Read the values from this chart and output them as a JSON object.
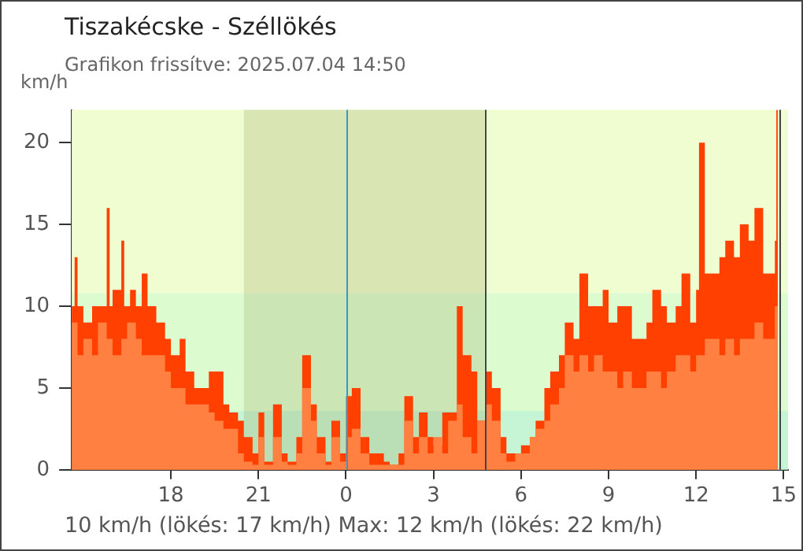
{
  "chart_data": {
    "type": "area",
    "title": "Tiszakécske - Széllökés",
    "subtitle": "Grafikon frissítve: 2025.07.04 14:50",
    "ylabel": "km/h",
    "annotations": [
      "10 km/h  (lökés: 17 km/h)  Max: 12 km/h (lökés: 22 km/h)"
    ],
    "xlim": [
      "2025-07-03T14:36",
      "2025-07-04T15:09"
    ],
    "ylim": [
      0,
      22
    ],
    "xticks": [
      {
        "value": "2025-07-03T18:00",
        "label": "18"
      },
      {
        "value": "2025-07-03T21:00",
        "label": "21"
      },
      {
        "value": "2025-07-04T00:00",
        "label": "0"
      },
      {
        "value": "2025-07-04T03:00",
        "label": "3"
      },
      {
        "value": "2025-07-04T06:00",
        "label": "6"
      },
      {
        "value": "2025-07-04T09:00",
        "label": "9"
      },
      {
        "value": "2025-07-04T12:00",
        "label": "12"
      },
      {
        "value": "2025-07-04T15:00",
        "label": "15"
      }
    ],
    "yticks": [
      0,
      5,
      10,
      15,
      20
    ],
    "grid": false,
    "legend": false,
    "bands": [
      {
        "axis": "y",
        "from": 0,
        "to": 3.6,
        "color": "#c5f5d5"
      },
      {
        "axis": "y",
        "from": 3.6,
        "to": 10.8,
        "color": "#dcfcd0"
      },
      {
        "axis": "y",
        "from": 10.8,
        "to": 22,
        "color": "#effdd0"
      },
      {
        "axis": "x",
        "from": "2025-07-03T20:30",
        "to": "2025-07-04T04:45",
        "color": "#9aa060"
      }
    ],
    "ref_lines": [
      {
        "axis": "x",
        "value": "2025-07-04T00:00",
        "color": "#3399cc"
      },
      {
        "axis": "x",
        "value": "2025-07-04T04:45",
        "color": "#444444"
      },
      {
        "axis": "x",
        "value": "2025-07-04T14:51",
        "color": "#444444"
      }
    ],
    "series": [
      {
        "color": "#ff4000",
        "x": [
          "2025-07-03T14:36",
          "2025-07-03T14:42",
          "2025-07-03T14:48",
          "2025-07-03T15:00",
          "2025-07-03T15:18",
          "2025-07-03T15:30",
          "2025-07-03T15:48",
          "2025-07-03T15:54",
          "2025-07-03T16:00",
          "2025-07-03T16:18",
          "2025-07-03T16:24",
          "2025-07-03T16:36",
          "2025-07-03T16:48",
          "2025-07-03T17:00",
          "2025-07-03T17:12",
          "2025-07-03T17:30",
          "2025-07-03T17:48",
          "2025-07-03T18:00",
          "2025-07-03T18:18",
          "2025-07-03T18:30",
          "2025-07-03T18:48",
          "2025-07-03T19:00",
          "2025-07-03T19:18",
          "2025-07-03T19:30",
          "2025-07-03T19:48",
          "2025-07-03T20:00",
          "2025-07-03T20:18",
          "2025-07-03T20:30",
          "2025-07-03T20:48",
          "2025-07-03T21:00",
          "2025-07-03T21:12",
          "2025-07-03T21:30",
          "2025-07-03T21:48",
          "2025-07-03T22:00",
          "2025-07-03T22:18",
          "2025-07-03T22:30",
          "2025-07-03T22:48",
          "2025-07-03T23:00",
          "2025-07-03T23:18",
          "2025-07-03T23:30",
          "2025-07-03T23:48",
          "2025-07-04T00:00",
          "2025-07-04T00:12",
          "2025-07-04T00:30",
          "2025-07-04T00:48",
          "2025-07-04T01:00",
          "2025-07-04T01:18",
          "2025-07-04T01:30",
          "2025-07-04T01:48",
          "2025-07-04T02:00",
          "2025-07-04T02:18",
          "2025-07-04T02:30",
          "2025-07-04T02:48",
          "2025-07-04T03:00",
          "2025-07-04T03:18",
          "2025-07-04T03:30",
          "2025-07-04T03:48",
          "2025-07-04T04:00",
          "2025-07-04T04:18",
          "2025-07-04T04:30",
          "2025-07-04T04:48",
          "2025-07-04T05:00",
          "2025-07-04T05:18",
          "2025-07-04T05:30",
          "2025-07-04T05:48",
          "2025-07-04T06:00",
          "2025-07-04T06:18",
          "2025-07-04T06:30",
          "2025-07-04T06:48",
          "2025-07-04T07:00",
          "2025-07-04T07:18",
          "2025-07-04T07:30",
          "2025-07-04T07:48",
          "2025-07-04T08:00",
          "2025-07-04T08:18",
          "2025-07-04T08:30",
          "2025-07-04T08:48",
          "2025-07-04T09:00",
          "2025-07-04T09:18",
          "2025-07-04T09:30",
          "2025-07-04T09:48",
          "2025-07-04T10:00",
          "2025-07-04T10:18",
          "2025-07-04T10:30",
          "2025-07-04T10:48",
          "2025-07-04T11:00",
          "2025-07-04T11:18",
          "2025-07-04T11:30",
          "2025-07-04T11:48",
          "2025-07-04T12:00",
          "2025-07-04T12:06",
          "2025-07-04T12:18",
          "2025-07-04T12:30",
          "2025-07-04T12:48",
          "2025-07-04T13:00",
          "2025-07-04T13:18",
          "2025-07-04T13:30",
          "2025-07-04T13:48",
          "2025-07-04T14:00",
          "2025-07-04T14:18",
          "2025-07-04T14:30",
          "2025-07-04T14:42",
          "2025-07-04T14:45",
          "2025-07-04T14:48"
        ],
        "values": [
          10,
          13,
          10,
          9,
          10,
          10,
          16,
          10,
          11,
          14,
          10,
          11,
          10,
          12,
          10,
          9,
          8,
          7,
          8,
          6,
          5,
          5,
          6,
          6,
          4,
          3.5,
          3,
          2,
          1,
          3.5,
          0.5,
          4,
          1,
          0.5,
          2,
          7,
          4,
          2,
          0.5,
          3,
          1,
          4.5,
          5,
          2,
          1,
          1,
          0.5,
          0.3,
          1,
          4.5,
          2,
          3.5,
          2,
          1.5,
          3.5,
          3.5,
          10,
          7,
          6,
          3,
          6,
          5,
          2,
          1,
          1,
          1.5,
          2,
          3,
          5,
          6,
          7,
          9,
          8,
          12,
          10,
          10,
          11,
          9,
          10,
          10,
          8,
          8,
          9,
          11,
          10,
          9,
          10,
          12,
          9,
          11,
          20,
          12,
          12,
          13,
          14,
          13,
          15,
          14,
          16,
          12,
          12,
          14,
          22,
          12
        ]
      },
      {
        "color": "#ff8040",
        "x": [
          "2025-07-03T14:36",
          "2025-07-03T14:48",
          "2025-07-03T15:00",
          "2025-07-03T15:18",
          "2025-07-03T15:30",
          "2025-07-03T15:48",
          "2025-07-03T16:00",
          "2025-07-03T16:18",
          "2025-07-03T16:30",
          "2025-07-03T16:48",
          "2025-07-03T17:00",
          "2025-07-03T17:12",
          "2025-07-03T17:30",
          "2025-07-03T17:48",
          "2025-07-03T18:00",
          "2025-07-03T18:18",
          "2025-07-03T18:30",
          "2025-07-03T18:48",
          "2025-07-03T19:00",
          "2025-07-03T19:18",
          "2025-07-03T19:30",
          "2025-07-03T19:48",
          "2025-07-03T20:00",
          "2025-07-03T20:18",
          "2025-07-03T20:30",
          "2025-07-03T20:48",
          "2025-07-03T21:00",
          "2025-07-03T21:12",
          "2025-07-03T21:30",
          "2025-07-03T21:48",
          "2025-07-03T22:00",
          "2025-07-03T22:18",
          "2025-07-03T22:30",
          "2025-07-03T22:48",
          "2025-07-03T23:00",
          "2025-07-03T23:18",
          "2025-07-03T23:30",
          "2025-07-03T23:48",
          "2025-07-04T00:00",
          "2025-07-04T00:12",
          "2025-07-04T00:30",
          "2025-07-04T00:48",
          "2025-07-04T01:00",
          "2025-07-04T01:18",
          "2025-07-04T01:30",
          "2025-07-04T01:48",
          "2025-07-04T02:00",
          "2025-07-04T02:18",
          "2025-07-04T02:30",
          "2025-07-04T02:48",
          "2025-07-04T03:00",
          "2025-07-04T03:18",
          "2025-07-04T03:30",
          "2025-07-04T03:48",
          "2025-07-04T04:00",
          "2025-07-04T04:18",
          "2025-07-04T04:30",
          "2025-07-04T04:48",
          "2025-07-04T05:00",
          "2025-07-04T05:18",
          "2025-07-04T05:30",
          "2025-07-04T05:48",
          "2025-07-04T06:00",
          "2025-07-04T06:18",
          "2025-07-04T06:30",
          "2025-07-04T06:48",
          "2025-07-04T07:00",
          "2025-07-04T07:18",
          "2025-07-04T07:30",
          "2025-07-04T07:48",
          "2025-07-04T08:00",
          "2025-07-04T08:18",
          "2025-07-04T08:30",
          "2025-07-04T08:48",
          "2025-07-04T09:00",
          "2025-07-04T09:18",
          "2025-07-04T09:30",
          "2025-07-04T09:48",
          "2025-07-04T10:00",
          "2025-07-04T10:18",
          "2025-07-04T10:30",
          "2025-07-04T10:48",
          "2025-07-04T11:00",
          "2025-07-04T11:18",
          "2025-07-04T11:30",
          "2025-07-04T11:48",
          "2025-07-04T12:00",
          "2025-07-04T12:18",
          "2025-07-04T12:30",
          "2025-07-04T12:48",
          "2025-07-04T13:00",
          "2025-07-04T13:18",
          "2025-07-04T13:30",
          "2025-07-04T13:48",
          "2025-07-04T14:00",
          "2025-07-04T14:18",
          "2025-07-04T14:30",
          "2025-07-04T14:42",
          "2025-07-04T14:48"
        ],
        "values": [
          9,
          7,
          8,
          7,
          9,
          8,
          7,
          8,
          9,
          8,
          7,
          7,
          7,
          6,
          5,
          5,
          4,
          4,
          4,
          3.5,
          3,
          2.5,
          2.5,
          1,
          0.5,
          0.3,
          2,
          0.3,
          2,
          0.5,
          0.3,
          1,
          5,
          3,
          1,
          0.3,
          2,
          0.5,
          2,
          2.5,
          1,
          0.3,
          0.3,
          0.3,
          0.3,
          0.3,
          3,
          1,
          2,
          1,
          2,
          1,
          3,
          4,
          2,
          1,
          3,
          4,
          3,
          1,
          0.5,
          1,
          1,
          2,
          2.5,
          3,
          4,
          5,
          7,
          6,
          7,
          6,
          7,
          6,
          6,
          5,
          6,
          5,
          5,
          6,
          6,
          5,
          6,
          7,
          7,
          6,
          7,
          8,
          8,
          7,
          8,
          7,
          8,
          8,
          9,
          8,
          8,
          10,
          10
        ]
      }
    ]
  }
}
